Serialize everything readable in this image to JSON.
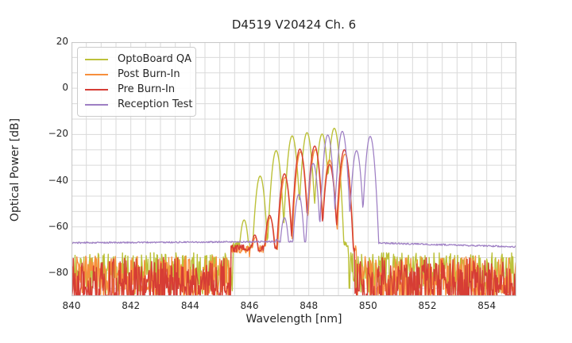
{
  "figure": {
    "background": "#ffffff",
    "text_color": "#262626",
    "grid_color": "#dadada",
    "spine_color": "#c9c9c9"
  },
  "chart_data": {
    "type": "line",
    "title": "D4519 V20424 Ch. 6",
    "xlabel": "Wavelength [nm]",
    "ylabel": "Optical Power [dB]",
    "xlim": [
      840,
      855
    ],
    "ylim": [
      -90,
      20
    ],
    "x_ticks": [
      840,
      842,
      844,
      846,
      848,
      850,
      852,
      854
    ],
    "y_ticks": [
      20,
      0,
      -20,
      -40,
      -60,
      -80
    ],
    "y_tick_labels": [
      "20",
      "0",
      "−20",
      "−40",
      "−60",
      "−80"
    ],
    "grid": {
      "on": true,
      "x_step_nm": 0.5,
      "y_step_db": 6.6667
    },
    "legend": {
      "position": "upper-left",
      "entries": [
        "OptoBoard QA",
        "Post Burn-In",
        "Pre Burn-In",
        "Reception Test"
      ]
    },
    "series": [
      {
        "key": "optoboard-qa",
        "name": "OptoBoard QA",
        "color": "#bcc13a",
        "seed": 11,
        "linewidth": 1.4,
        "noise_bands": [
          {
            "x": [
              840,
              845.45
            ],
            "top": -71.2,
            "depth": 18,
            "bias": 1.1
          },
          {
            "x": [
              849.3,
              855
            ],
            "top": -71.2,
            "depth": 18,
            "bias": 1.1
          }
        ],
        "floors": [
          {
            "x": [
              845.45,
              849.32
            ],
            "from": -67.6,
            "to": -67.6,
            "amp": 1.4
          }
        ],
        "modes": {
          "half_width": 0.25,
          "drop": 30,
          "peaks": [
            [
              845.82,
              -57.0
            ],
            [
              846.36,
              -38.0
            ],
            [
              846.9,
              -27.0
            ],
            [
              847.44,
              -20.6
            ],
            [
              847.94,
              -19.2
            ],
            [
              848.45,
              -19.8
            ],
            [
              848.86,
              -17.3
            ]
          ]
        }
      },
      {
        "key": "post-burn-in",
        "name": "Post Burn-In",
        "color": "#f78f3c",
        "seed": 22,
        "linewidth": 1.4,
        "noise_bands": [
          {
            "x": [
              840,
              845.37
            ],
            "top": -72.6,
            "depth": 20,
            "bias": 0.95
          },
          {
            "x": [
              849.56,
              855
            ],
            "top": -72.6,
            "depth": 20,
            "bias": 0.95
          }
        ],
        "floors": [
          {
            "x": [
              845.37,
              849.6
            ],
            "from": -69.8,
            "to": -69.8,
            "amp": 1.8,
            "spike_p": 0.05,
            "spike_d": 9
          }
        ],
        "modes": {
          "half_width": 0.25,
          "drop": 30,
          "peaks": [
            [
              846.2,
              -64.5
            ],
            [
              846.7,
              -56.0
            ],
            [
              847.2,
              -38.5
            ],
            [
              847.72,
              -27.5
            ],
            [
              848.22,
              -26.5
            ],
            [
              848.7,
              -31.0
            ],
            [
              849.22,
              -28.5
            ]
          ]
        }
      },
      {
        "key": "pre-burn-in",
        "name": "Pre Burn-In",
        "color": "#d63d35",
        "seed": 33,
        "linewidth": 1.4,
        "noise_bands": [
          {
            "x": [
              840,
              845.37
            ],
            "top": -72.9,
            "depth": 21,
            "bias": 0.8
          },
          {
            "x": [
              849.58,
              855
            ],
            "top": -72.9,
            "depth": 21,
            "bias": 0.8
          }
        ],
        "floors": [
          {
            "x": [
              845.37,
              849.55
            ],
            "from": -69.3,
            "to": -69.3,
            "amp": 1.6
          }
        ],
        "modes": {
          "half_width": 0.25,
          "drop": 30,
          "peaks": [
            [
              846.18,
              -63.5
            ],
            [
              846.68,
              -55.0
            ],
            [
              847.18,
              -37.0
            ],
            [
              847.7,
              -26.3
            ],
            [
              848.2,
              -25.0
            ],
            [
              848.7,
              -33.0
            ],
            [
              849.2,
              -26.6
            ]
          ]
        }
      },
      {
        "key": "reception-test",
        "name": "Reception Test",
        "color": "#9e7fc4",
        "seed": 44,
        "linewidth": 1.25,
        "noise_bands": [],
        "floors": [
          {
            "x": [
              840,
              850.12
            ],
            "from": -66.9,
            "to": -66.2,
            "amp": 0.33
          },
          {
            "x": [
              850.12,
              855
            ],
            "from": -66.9,
            "to": -68.6,
            "amp": 0.33
          }
        ],
        "modes": {
          "half_width": 0.24,
          "drop": 32,
          "peaks": [
            [
              846.55,
              -66.5
            ],
            [
              846.92,
              -65.3
            ],
            [
              847.18,
              -56.0
            ],
            [
              847.66,
              -46.0
            ],
            [
              848.15,
              -32.5
            ],
            [
              848.64,
              -20.2
            ],
            [
              849.13,
              -18.6
            ],
            [
              849.61,
              -27.0
            ],
            [
              850.07,
              -20.8
            ]
          ]
        }
      }
    ]
  }
}
